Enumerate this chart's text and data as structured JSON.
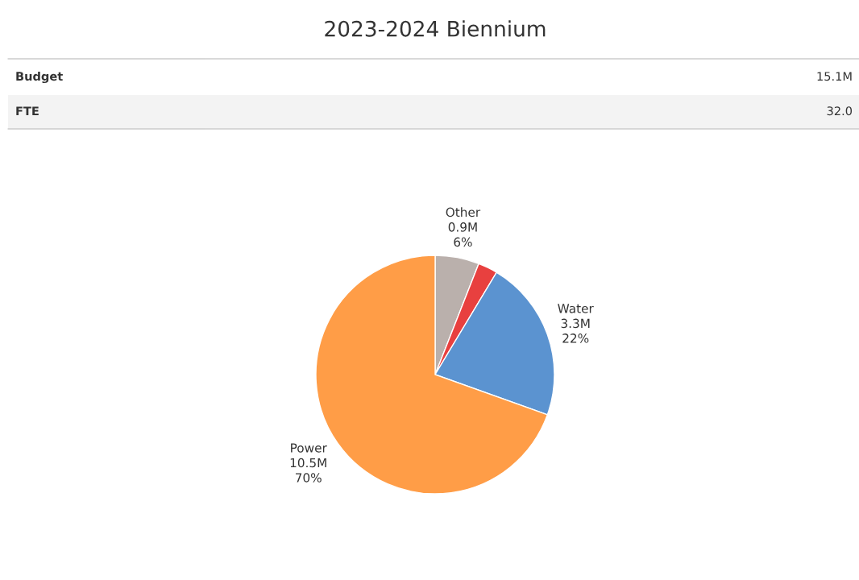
{
  "chart_data": {
    "type": "pie",
    "title": "2023-2024 Biennium",
    "annotations": [
      "Budget",
      "15.1M",
      "FTE",
      "32.0",
      "6%",
      "22%",
      "70%"
    ],
    "categories": [
      "Other",
      null,
      "Water",
      "Power"
    ],
    "values": [
      0.9,
      0.4,
      3.3,
      10.5
    ],
    "colors": [
      "#bab0ac",
      "#e8403f",
      "#5b93d0",
      "#ff9d47"
    ],
    "value_labels": [
      "0.9M",
      null,
      "3.3M",
      "10.5M"
    ]
  }
}
